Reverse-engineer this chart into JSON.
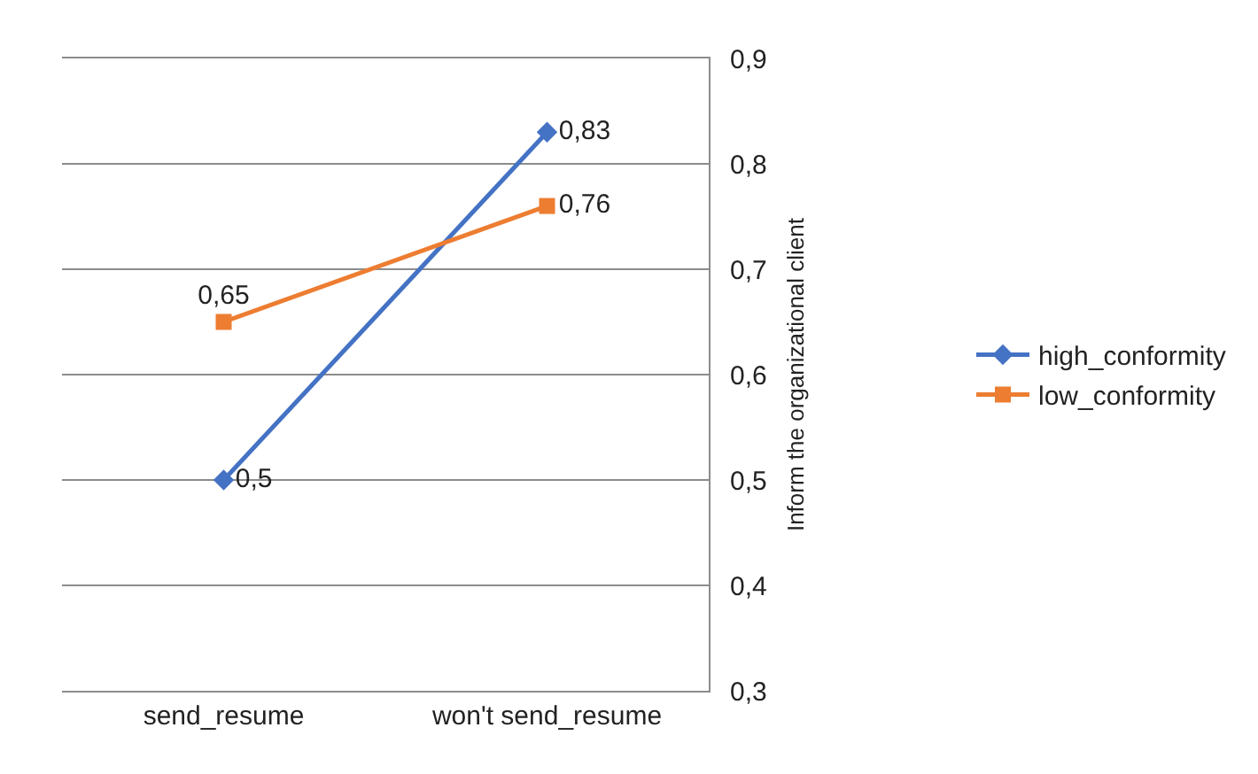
{
  "chart_data": {
    "type": "line",
    "ylabel": "Inform the organizational client",
    "categories": [
      "send_resume",
      "won't send_resume"
    ],
    "series": [
      {
        "name": "high_conformity",
        "color": "#4472c4",
        "marker": "diamond",
        "values": [
          0.5,
          0.83
        ],
        "value_labels": [
          "0,5",
          "0,83"
        ]
      },
      {
        "name": "low_conformity",
        "color": "#ed7d31",
        "marker": "square",
        "values": [
          0.65,
          0.76
        ],
        "value_labels": [
          "0,65",
          "0,76"
        ]
      }
    ],
    "ylim": [
      0.3,
      0.9
    ],
    "yticks": [
      {
        "value": 0.3,
        "label": "0,3"
      },
      {
        "value": 0.4,
        "label": "0,4"
      },
      {
        "value": 0.5,
        "label": "0,5"
      },
      {
        "value": 0.6,
        "label": "0,6"
      },
      {
        "value": 0.7,
        "label": "0,7"
      },
      {
        "value": 0.8,
        "label": "0,8"
      },
      {
        "value": 0.9,
        "label": "0,9"
      }
    ],
    "grid": "y",
    "legend": "right",
    "line_style": "solid"
  }
}
